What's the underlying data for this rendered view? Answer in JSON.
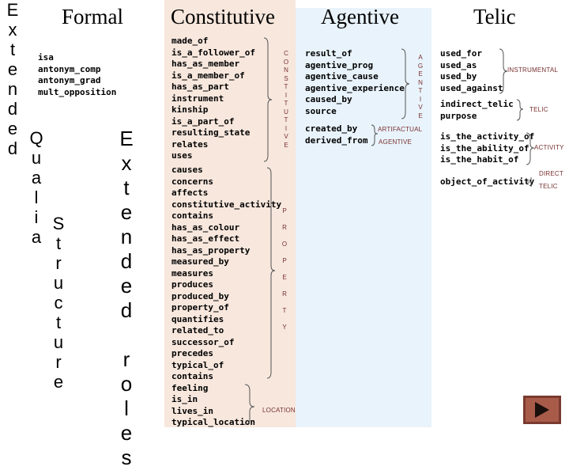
{
  "side": {
    "extended": "E\nx\nt\ne\nn\nd\ne\nd",
    "qualia": "Q\nu\na\nl\ni\na",
    "structure": "S\nt\nr\nu\nc\nt\nu\nr\ne",
    "extended_roles": "E\nx\nt\ne\nn\nd\ne\nd\n\nr\no\nl\ne\ns"
  },
  "formal": {
    "title": "Formal",
    "items": [
      "isa",
      "antonym_comp",
      "antonym_grad",
      "mult_opposition"
    ]
  },
  "constitutive": {
    "title": "Constitutive",
    "group1": [
      "made_of",
      "is_a_follower_of",
      "has_as_member",
      "is_a_member_of",
      "has_as_part",
      "instrument",
      "kinship",
      "is_a_part_of",
      "resulting_state",
      "relates",
      "uses"
    ],
    "group1_label": "C\nO\nN\nS\nT\nI\nT\nU\nT\nI\nV\nE",
    "group2": [
      "causes",
      "concerns",
      "affects",
      "constitutive_activity",
      "contains",
      "has_as_colour",
      "has_as_effect",
      "has_as_property",
      "measured_by",
      "measures",
      "produces",
      "produced_by",
      "property_of",
      "quantifies",
      "related_to",
      "successor_of",
      "precedes",
      "typical_of",
      "contains",
      "feeling",
      "is_in",
      "lives_in",
      "typical_location"
    ],
    "group2_label": "P\n\nR\n\nO\n\nP\n\nE\n\nR\n\nT\n\nY",
    "location_label": "LOCATION"
  },
  "agentive": {
    "title": "Agentive",
    "group1": [
      "result_of",
      "agentive_prog",
      "agentive_cause",
      "agentive_experience",
      "caused_by",
      "source"
    ],
    "group1_label": "A\nG\nE\nN\nT\nI\nV\nE",
    "group2": [
      "created_by",
      "derived_from"
    ],
    "artifactual_label": "ARTIFACTUAL",
    "agentive_label": "AGENTIVE"
  },
  "telic": {
    "title": "Telic",
    "group1": [
      "used_for",
      "used_as",
      "used_by",
      "used_against"
    ],
    "instrumental_label": "INSTRUMENTAL",
    "group2": [
      "indirect_telic",
      "purpose"
    ],
    "telic_label": "TELIC",
    "group3": [
      "is_the_activity_of",
      "is_the_ability_of",
      "is_the_habit_of"
    ],
    "activity_label": "ACTIVITY",
    "group4": [
      "object_of_activity"
    ],
    "direct_label": "DIRECT",
    "direct_telic_label": "TELIC"
  },
  "colors": {
    "constitutive_bg": "#f7e7dd",
    "agentive_bg": "#e8f3fb",
    "label_color": "#7a3030",
    "play_button": "#a95b4a"
  },
  "icons": {
    "play": "play-triangle-icon"
  }
}
